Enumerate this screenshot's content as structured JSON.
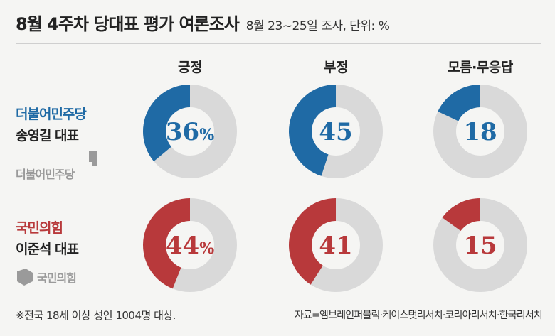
{
  "header": {
    "title": "8월 4주차 당대표 평가 여론조사",
    "subtitle": "8월 23~25일 조사, 단위: %"
  },
  "columns": [
    "긍정",
    "부정",
    "모름·무응답"
  ],
  "rows": [
    {
      "party": "더불어민주당",
      "leader": "송영길 대표",
      "logo_text": "더불어민주당",
      "color": "#1f6aa5",
      "labels": [
        "36%",
        "45",
        "18"
      ]
    },
    {
      "party": "국민의힘",
      "leader": "이준석 대표",
      "logo_text": "국민의힘",
      "color": "#b8393b",
      "labels": [
        "44%",
        "41",
        "15"
      ]
    }
  ],
  "ring_color": "#d9d9d9",
  "chart_data": {
    "type": "pie",
    "title": "8월 4주차 당대표 평가 여론조사",
    "subtitle": "8월 23~25일 조사, 단위: %",
    "categories": [
      "긍정",
      "부정",
      "모름·무응답"
    ],
    "series": [
      {
        "name": "더불어민주당 송영길 대표",
        "values": [
          36,
          45,
          18
        ]
      },
      {
        "name": "국민의힘 이준석 대표",
        "values": [
          44,
          41,
          15
        ]
      }
    ]
  },
  "footer": {
    "note": "※전국 18세 이상 성인 1004명 대상.",
    "source": "자료=엠브레인퍼블릭·케이스탯리서치·코리아리서치·한국리서치"
  }
}
